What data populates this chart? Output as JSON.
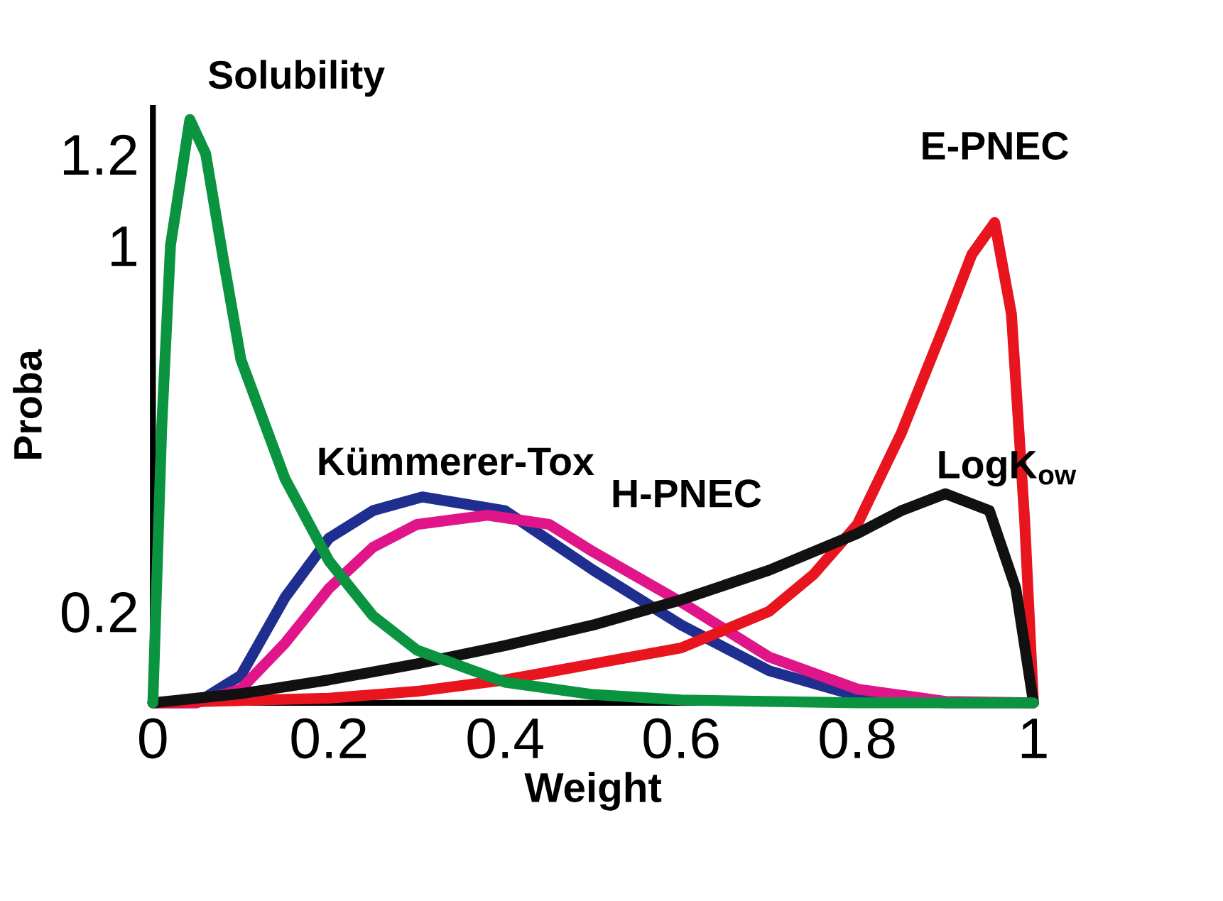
{
  "chart_data": {
    "type": "line",
    "xlabel": "Weight",
    "ylabel": "Proba",
    "xlim": [
      0,
      1
    ],
    "ylim": [
      0,
      1.3
    ],
    "xticks": [
      0,
      0.2,
      0.4,
      0.6,
      0.8,
      1
    ],
    "yticks": [
      0.2,
      1,
      1.2
    ],
    "grid": false,
    "legend": false,
    "line_style": "solid",
    "series": [
      {
        "name": "Kümmerer-Tox",
        "color": "#1f2f8f",
        "x": [
          0,
          0.05,
          0.1,
          0.15,
          0.2,
          0.25,
          0.306,
          0.4,
          0.5,
          0.6,
          0.7,
          0.8,
          0.9,
          1
        ],
        "values": [
          0,
          0,
          0.06,
          0.23,
          0.36,
          0.42,
          0.45,
          0.42,
          0.29,
          0.17,
          0.07,
          0.015,
          0,
          0
        ]
      },
      {
        "name": "H-PNEC",
        "color": "#e0158a",
        "x": [
          0,
          0.05,
          0.1,
          0.15,
          0.2,
          0.25,
          0.3,
          0.38,
          0.45,
          0.5,
          0.6,
          0.7,
          0.8,
          0.9,
          1
        ],
        "values": [
          0,
          0,
          0.03,
          0.13,
          0.25,
          0.34,
          0.39,
          0.41,
          0.39,
          0.33,
          0.22,
          0.1,
          0.03,
          0.003,
          0
        ]
      },
      {
        "name": "E-PNEC",
        "color": "#e8141e",
        "x": [
          0,
          0.2,
          0.3,
          0.4,
          0.5,
          0.6,
          0.7,
          0.75,
          0.8,
          0.85,
          0.9,
          0.93,
          0.956,
          0.975,
          0.99,
          1
        ],
        "values": [
          0,
          0.01,
          0.025,
          0.05,
          0.085,
          0.12,
          0.2,
          0.28,
          0.39,
          0.59,
          0.83,
          0.98,
          1.05,
          0.85,
          0.4,
          0
        ]
      },
      {
        "name": "LogK$_{ow}$",
        "color": "#111111",
        "x": [
          0,
          0.1,
          0.2,
          0.3,
          0.4,
          0.5,
          0.6,
          0.7,
          0.8,
          0.85,
          0.9,
          0.95,
          0.98,
          1
        ],
        "values": [
          0,
          0.02,
          0.05,
          0.085,
          0.125,
          0.17,
          0.225,
          0.29,
          0.37,
          0.42,
          0.457,
          0.42,
          0.25,
          0
        ]
      },
      {
        "name": "Solubility",
        "color": "#0a9440",
        "x": [
          0,
          0.01,
          0.02,
          0.042,
          0.06,
          0.08,
          0.1,
          0.15,
          0.2,
          0.25,
          0.3,
          0.4,
          0.5,
          0.6,
          0.8,
          1
        ],
        "values": [
          0,
          0.6,
          1.0,
          1.275,
          1.2,
          0.97,
          0.75,
          0.49,
          0.31,
          0.19,
          0.115,
          0.045,
          0.018,
          0.006,
          0,
          0
        ]
      }
    ]
  }
}
